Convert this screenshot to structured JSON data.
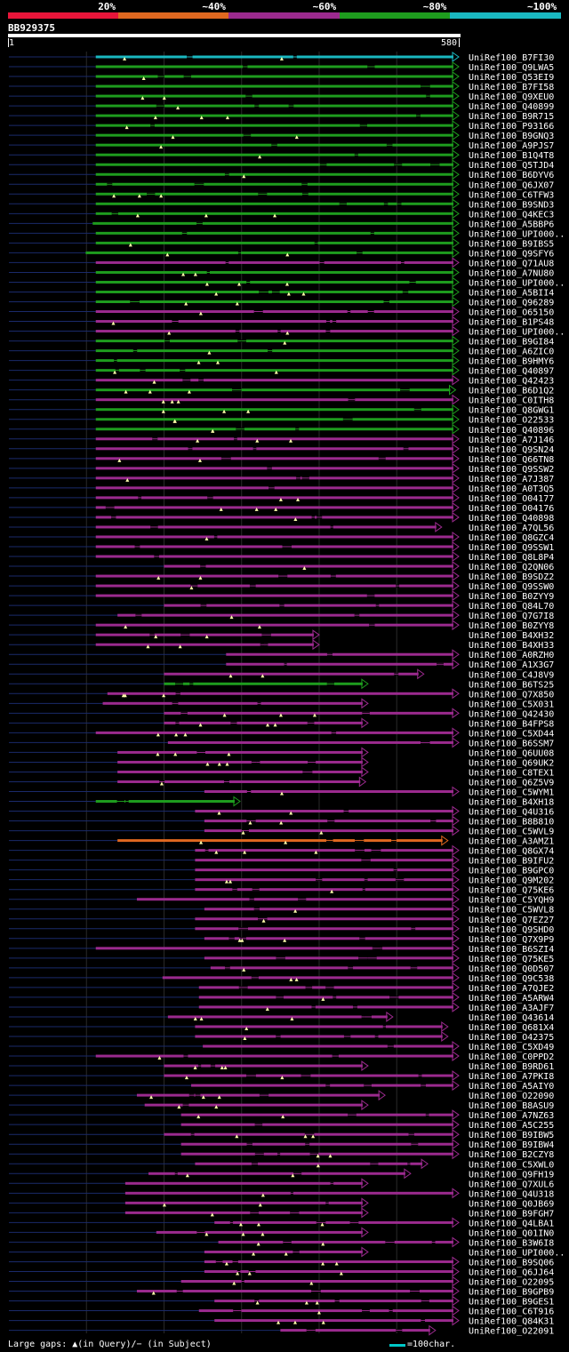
{
  "legend": [
    {
      "label": "20%",
      "color": "#e8153a"
    },
    {
      "label": "~40%",
      "color": "#e06820"
    },
    {
      "label": "~60%",
      "color": "#9b2a8e"
    },
    {
      "label": "~80%",
      "color": "#1e9c1e"
    },
    {
      "label": "~100%",
      "color": "#1ab8c0"
    }
  ],
  "query": {
    "name": "BB929375",
    "start_label": "1",
    "end_label": "580",
    "length": 580
  },
  "hits": [
    {
      "name": "UniRef100_B7FI30",
      "color": "#1ab8c0",
      "start": 112,
      "end": 580
    },
    {
      "name": "UniRef100_Q9LWA5",
      "color": "#1e9c1e",
      "start": 112,
      "end": 580
    },
    {
      "name": "UniRef100_Q53EI9",
      "color": "#1e9c1e",
      "start": 112,
      "end": 580
    },
    {
      "name": "UniRef100_B7FI58",
      "color": "#1e9c1e",
      "start": 112,
      "end": 580
    },
    {
      "name": "UniRef100_Q9XEU0",
      "color": "#1e9c1e",
      "start": 112,
      "end": 580
    },
    {
      "name": "UniRef100_Q40899",
      "color": "#1e9c1e",
      "start": 112,
      "end": 580
    },
    {
      "name": "UniRef100_B9R715",
      "color": "#1e9c1e",
      "start": 112,
      "end": 580
    },
    {
      "name": "UniRef100_P93166",
      "color": "#1e9c1e",
      "start": 112,
      "end": 580
    },
    {
      "name": "UniRef100_B9GNQ3",
      "color": "#1e9c1e",
      "start": 112,
      "end": 580
    },
    {
      "name": "UniRef100_A9PJS7",
      "color": "#1e9c1e",
      "start": 112,
      "end": 580
    },
    {
      "name": "UniRef100_B1Q4T8",
      "color": "#1e9c1e",
      "start": 112,
      "end": 580
    },
    {
      "name": "UniRef100_Q5TJD4",
      "color": "#1e9c1e",
      "start": 112,
      "end": 580
    },
    {
      "name": "UniRef100_B6DYV6",
      "color": "#1e9c1e",
      "start": 112,
      "end": 580
    },
    {
      "name": "UniRef100_Q6JX07",
      "color": "#1e9c1e",
      "start": 112,
      "end": 580
    },
    {
      "name": "UniRef100_C6TFW3",
      "color": "#1e9c1e",
      "start": 112,
      "end": 580
    },
    {
      "name": "UniRef100_B9SND3",
      "color": "#1e9c1e",
      "start": 112,
      "end": 580
    },
    {
      "name": "UniRef100_Q4KEC3",
      "color": "#1e9c1e",
      "start": 112,
      "end": 580
    },
    {
      "name": "UniRef100_A5BBP6",
      "color": "#1e9c1e",
      "start": 108,
      "end": 580
    },
    {
      "name": "UniRef100_UPI000..",
      "color": "#1e9c1e",
      "start": 112,
      "end": 580
    },
    {
      "name": "UniRef100_B9IBS5",
      "color": "#1e9c1e",
      "start": 112,
      "end": 580
    },
    {
      "name": "UniRef100_Q9SFY6",
      "color": "#1e9c1e",
      "start": 99,
      "end": 580
    },
    {
      "name": "UniRef100_Q71AU8",
      "color": "#9b2a8e",
      "start": 112,
      "end": 580
    },
    {
      "name": "UniRef100_A7NU80",
      "color": "#1e9c1e",
      "start": 112,
      "end": 580
    },
    {
      "name": "UniRef100_UPI000..",
      "color": "#1e9c1e",
      "start": 112,
      "end": 580
    },
    {
      "name": "UniRef100_A5BII4",
      "color": "#1e9c1e",
      "start": 112,
      "end": 580
    },
    {
      "name": "UniRef100_Q96289",
      "color": "#1e9c1e",
      "start": 112,
      "end": 580
    },
    {
      "name": "UniRef100_O65150",
      "color": "#9b2a8e",
      "start": 112,
      "end": 580
    },
    {
      "name": "UniRef100_B1PS48",
      "color": "#9b2a8e",
      "start": 112,
      "end": 580
    },
    {
      "name": "UniRef100_UPI000..",
      "color": "#9b2a8e",
      "start": 112,
      "end": 580
    },
    {
      "name": "UniRef100_B9GI84",
      "color": "#1e9c1e",
      "start": 112,
      "end": 580
    },
    {
      "name": "UniRef100_A6ZIC0",
      "color": "#1e9c1e",
      "start": 112,
      "end": 580
    },
    {
      "name": "UniRef100_B9HMY6",
      "color": "#1e9c1e",
      "start": 112,
      "end": 580
    },
    {
      "name": "UniRef100_Q40897",
      "color": "#1e9c1e",
      "start": 112,
      "end": 580
    },
    {
      "name": "UniRef100_Q42423",
      "color": "#9b2a8e",
      "start": 112,
      "end": 580
    },
    {
      "name": "UniRef100_B6D1Q2",
      "color": "#1e9c1e",
      "start": 112,
      "end": 576
    },
    {
      "name": "UniRef100_C0ITH8",
      "color": "#9b2a8e",
      "start": 112,
      "end": 580
    },
    {
      "name": "UniRef100_Q8GWG1",
      "color": "#1e9c1e",
      "start": 112,
      "end": 580
    },
    {
      "name": "UniRef100_O22533",
      "color": "#1e9c1e",
      "start": 112,
      "end": 580
    },
    {
      "name": "UniRef100_Q40896",
      "color": "#1e9c1e",
      "start": 112,
      "end": 580
    },
    {
      "name": "UniRef100_A7J146",
      "color": "#9b2a8e",
      "start": 112,
      "end": 580
    },
    {
      "name": "UniRef100_Q9SN24",
      "color": "#9b2a8e",
      "start": 112,
      "end": 580
    },
    {
      "name": "UniRef100_Q66TN8",
      "color": "#9b2a8e",
      "start": 112,
      "end": 580
    },
    {
      "name": "UniRef100_Q9SSW2",
      "color": "#9b2a8e",
      "start": 112,
      "end": 580
    },
    {
      "name": "UniRef100_A7J387",
      "color": "#9b2a8e",
      "start": 112,
      "end": 580
    },
    {
      "name": "UniRef100_A0T3Q5",
      "color": "#9b2a8e",
      "start": 112,
      "end": 580
    },
    {
      "name": "UniRef100_O04177",
      "color": "#9b2a8e",
      "start": 112,
      "end": 580
    },
    {
      "name": "UniRef100_O04176",
      "color": "#9b2a8e",
      "start": 112,
      "end": 580
    },
    {
      "name": "UniRef100_Q40898",
      "color": "#9b2a8e",
      "start": 112,
      "end": 580
    },
    {
      "name": "UniRef100_A7QL56",
      "color": "#9b2a8e",
      "start": 112,
      "end": 558
    },
    {
      "name": "UniRef100_Q8GZC4",
      "color": "#9b2a8e",
      "start": 112,
      "end": 580
    },
    {
      "name": "UniRef100_Q9SSW1",
      "color": "#9b2a8e",
      "start": 112,
      "end": 580
    },
    {
      "name": "UniRef100_Q8L8P4",
      "color": "#9b2a8e",
      "start": 112,
      "end": 580
    },
    {
      "name": "UniRef100_Q2QN06",
      "color": "#9b2a8e",
      "start": 200,
      "end": 580
    },
    {
      "name": "UniRef100_B9SDZ2",
      "color": "#9b2a8e",
      "start": 112,
      "end": 580
    },
    {
      "name": "UniRef100_Q9SSW0",
      "color": "#9b2a8e",
      "start": 112,
      "end": 580
    },
    {
      "name": "UniRef100_B0ZYY9",
      "color": "#9b2a8e",
      "start": 112,
      "end": 580
    },
    {
      "name": "UniRef100_Q84L70",
      "color": "#9b2a8e",
      "start": 200,
      "end": 580
    },
    {
      "name": "UniRef100_Q7G7I8",
      "color": "#9b2a8e",
      "start": 140,
      "end": 580
    },
    {
      "name": "UniRef100_B0ZYY8",
      "color": "#9b2a8e",
      "start": 112,
      "end": 580
    },
    {
      "name": "UniRef100_B4XH32",
      "color": "#9b2a8e",
      "start": 112,
      "end": 400
    },
    {
      "name": "UniRef100_B4XH33",
      "color": "#9b2a8e",
      "start": 112,
      "end": 400
    },
    {
      "name": "UniRef100_A0RZH0",
      "color": "#9b2a8e",
      "start": 280,
      "end": 580
    },
    {
      "name": "UniRef100_A1X3G7",
      "color": "#9b2a8e",
      "start": 280,
      "end": 580
    },
    {
      "name": "UniRef100_C4J8V9",
      "color": "#9b2a8e",
      "start": 200,
      "end": 535
    },
    {
      "name": "UniRef100_B6TS25",
      "color": "#1e9c1e",
      "start": 200,
      "end": 463
    },
    {
      "name": "UniRef100_Q7X850",
      "color": "#9b2a8e",
      "start": 127,
      "end": 580
    },
    {
      "name": "UniRef100_C5X031",
      "color": "#9b2a8e",
      "start": 121,
      "end": 463
    },
    {
      "name": "UniRef100_Q42430",
      "color": "#9b2a8e",
      "start": 200,
      "end": 580
    },
    {
      "name": "UniRef100_B4FPS8",
      "color": "#9b2a8e",
      "start": 200,
      "end": 463
    },
    {
      "name": "UniRef100_C5XD44",
      "color": "#9b2a8e",
      "start": 112,
      "end": 580
    },
    {
      "name": "UniRef100_B6SSM7",
      "color": "#9b2a8e",
      "start": 205,
      "end": 580
    },
    {
      "name": "UniRef100_Q6UU08",
      "color": "#9b2a8e",
      "start": 140,
      "end": 463
    },
    {
      "name": "UniRef100_Q69UK2",
      "color": "#9b2a8e",
      "start": 140,
      "end": 463
    },
    {
      "name": "UniRef100_C8TEX1",
      "color": "#9b2a8e",
      "start": 140,
      "end": 463
    },
    {
      "name": "UniRef100_Q6Z5V9",
      "color": "#9b2a8e",
      "start": 140,
      "end": 460
    },
    {
      "name": "UniRef100_C5WYM1",
      "color": "#9b2a8e",
      "start": 252,
      "end": 580
    },
    {
      "name": "UniRef100_B4XH18",
      "color": "#1e9c1e",
      "start": 112,
      "end": 298
    },
    {
      "name": "UniRef100_Q4U316",
      "color": "#9b2a8e",
      "start": 240,
      "end": 580
    },
    {
      "name": "UniRef100_B8B810",
      "color": "#9b2a8e",
      "start": 252,
      "end": 580
    },
    {
      "name": "UniRef100_C5WVL9",
      "color": "#9b2a8e",
      "start": 252,
      "end": 580
    },
    {
      "name": "UniRef100_A3AMZ1",
      "color": "#e06820",
      "start": 140,
      "end": 566
    },
    {
      "name": "UniRef100_Q8GX74",
      "color": "#9b2a8e",
      "start": 240,
      "end": 580
    },
    {
      "name": "UniRef100_B9IFU2",
      "color": "#9b2a8e",
      "start": 240,
      "end": 580
    },
    {
      "name": "UniRef100_B9GPC0",
      "color": "#9b2a8e",
      "start": 240,
      "end": 580
    },
    {
      "name": "UniRef100_Q9M202",
      "color": "#9b2a8e",
      "start": 240,
      "end": 580
    },
    {
      "name": "UniRef100_Q75KE6",
      "color": "#9b2a8e",
      "start": 240,
      "end": 580
    },
    {
      "name": "UniRef100_C5YQH9",
      "color": "#9b2a8e",
      "start": 165,
      "end": 580
    },
    {
      "name": "UniRef100_C5WVL8",
      "color": "#9b2a8e",
      "start": 252,
      "end": 580
    },
    {
      "name": "UniRef100_Q7EZ27",
      "color": "#9b2a8e",
      "start": 240,
      "end": 580
    },
    {
      "name": "UniRef100_Q9SHD0",
      "color": "#9b2a8e",
      "start": 240,
      "end": 580
    },
    {
      "name": "UniRef100_Q7X9P9",
      "color": "#9b2a8e",
      "start": 252,
      "end": 580
    },
    {
      "name": "UniRef100_B6SZI4",
      "color": "#9b2a8e",
      "start": 112,
      "end": 580
    },
    {
      "name": "UniRef100_Q75KE5",
      "color": "#9b2a8e",
      "start": 252,
      "end": 580
    },
    {
      "name": "UniRef100_Q0D507",
      "color": "#9b2a8e",
      "start": 260,
      "end": 580
    },
    {
      "name": "UniRef100_Q9C538",
      "color": "#9b2a8e",
      "start": 198,
      "end": 580
    },
    {
      "name": "UniRef100_A7QJE2",
      "color": "#9b2a8e",
      "start": 245,
      "end": 580
    },
    {
      "name": "UniRef100_A5ARW4",
      "color": "#9b2a8e",
      "start": 245,
      "end": 580
    },
    {
      "name": "UniRef100_A3AJF7",
      "color": "#9b2a8e",
      "start": 245,
      "end": 580
    },
    {
      "name": "UniRef100_Q43614",
      "color": "#9b2a8e",
      "start": 205,
      "end": 495
    },
    {
      "name": "UniRef100_Q681X4",
      "color": "#9b2a8e",
      "start": 240,
      "end": 566
    },
    {
      "name": "UniRef100_O42375",
      "color": "#9b2a8e",
      "start": 240,
      "end": 566
    },
    {
      "name": "UniRef100_C5XD49",
      "color": "#9b2a8e",
      "start": 250,
      "end": 580
    },
    {
      "name": "UniRef100_C0PPD2",
      "color": "#9b2a8e",
      "start": 112,
      "end": 580
    },
    {
      "name": "UniRef100_B9RD61",
      "color": "#9b2a8e",
      "start": 200,
      "end": 463
    },
    {
      "name": "UniRef100_A7PKI8",
      "color": "#9b2a8e",
      "start": 200,
      "end": 580
    },
    {
      "name": "UniRef100_A5AIY0",
      "color": "#9b2a8e",
      "start": 235,
      "end": 580
    },
    {
      "name": "UniRef100_O22090",
      "color": "#9b2a8e",
      "start": 165,
      "end": 485
    },
    {
      "name": "UniRef100_B8ASU9",
      "color": "#9b2a8e",
      "start": 175,
      "end": 463
    },
    {
      "name": "UniRef100_A7NZ63",
      "color": "#9b2a8e",
      "start": 222,
      "end": 580
    },
    {
      "name": "UniRef100_A5C255",
      "color": "#9b2a8e",
      "start": 222,
      "end": 580
    },
    {
      "name": "UniRef100_B9IBW5",
      "color": "#9b2a8e",
      "start": 200,
      "end": 580
    },
    {
      "name": "UniRef100_B9IBW4",
      "color": "#9b2a8e",
      "start": 222,
      "end": 580
    },
    {
      "name": "UniRef100_B2CZY8",
      "color": "#9b2a8e",
      "start": 222,
      "end": 580
    },
    {
      "name": "UniRef100_C5XWL0",
      "color": "#9b2a8e",
      "start": 240,
      "end": 540
    },
    {
      "name": "UniRef100_Q9FH19",
      "color": "#9b2a8e",
      "start": 180,
      "end": 518
    },
    {
      "name": "UniRef100_Q7XUL6",
      "color": "#9b2a8e",
      "start": 150,
      "end": 463
    },
    {
      "name": "UniRef100_Q4U318",
      "color": "#9b2a8e",
      "start": 150,
      "end": 580
    },
    {
      "name": "UniRef100_Q0JB69",
      "color": "#9b2a8e",
      "start": 150,
      "end": 463
    },
    {
      "name": "UniRef100_B9FGH7",
      "color": "#9b2a8e",
      "start": 150,
      "end": 463
    },
    {
      "name": "UniRef100_Q4LBA1",
      "color": "#9b2a8e",
      "start": 265,
      "end": 580
    },
    {
      "name": "UniRef100_Q01IN0",
      "color": "#9b2a8e",
      "start": 190,
      "end": 463
    },
    {
      "name": "UniRef100_B3W6I8",
      "color": "#9b2a8e",
      "start": 270,
      "end": 580
    },
    {
      "name": "UniRef100_UPI000..",
      "color": "#9b2a8e",
      "start": 252,
      "end": 463
    },
    {
      "name": "UniRef100_B9SQ06",
      "color": "#9b2a8e",
      "start": 252,
      "end": 580
    },
    {
      "name": "UniRef100_Q6JJ64",
      "color": "#9b2a8e",
      "start": 252,
      "end": 580
    },
    {
      "name": "UniRef100_O22095",
      "color": "#9b2a8e",
      "start": 222,
      "end": 580
    },
    {
      "name": "UniRef100_B9GPB9",
      "color": "#9b2a8e",
      "start": 165,
      "end": 580
    },
    {
      "name": "UniRef100_B9GES1",
      "color": "#9b2a8e",
      "start": 265,
      "end": 580
    },
    {
      "name": "UniRef100_C6T916",
      "color": "#9b2a8e",
      "start": 245,
      "end": 580
    },
    {
      "name": "UniRef100_Q84K31",
      "color": "#9b2a8e",
      "start": 265,
      "end": 580
    },
    {
      "name": "UniRef100_O22091",
      "color": "#9b2a8e",
      "start": 350,
      "end": 550
    }
  ],
  "footer": {
    "gaps_text": "Large gaps: ▲(in Query)/− (in Subject)",
    "scale_text": "=100char."
  }
}
